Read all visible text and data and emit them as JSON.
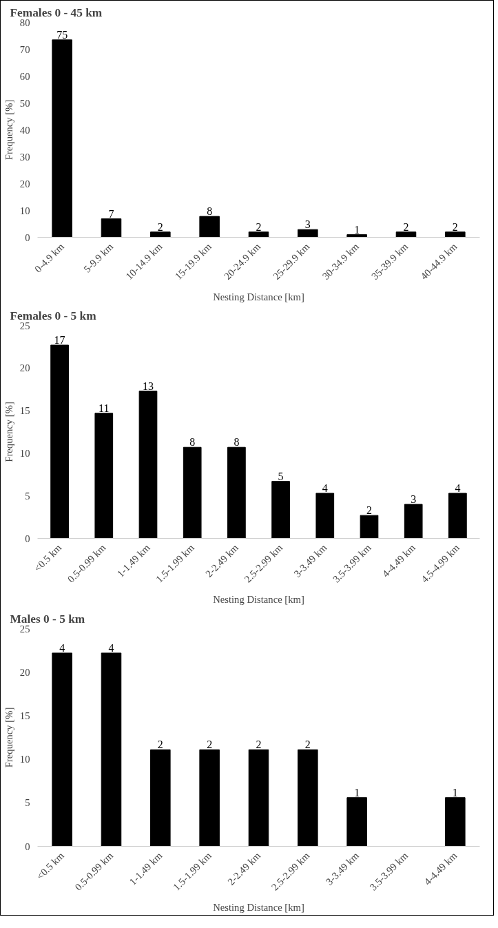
{
  "chart_data": [
    {
      "type": "bar",
      "title": "Females 0 - 45 km",
      "xlabel": "Nesting Distance [km]",
      "ylabel": "Frequency [%]",
      "color": "#000000",
      "categories": [
        "0-4.9 km",
        "5-9.9 km",
        "10-14.9 km",
        "15-19.9 km",
        "20-24.9 km",
        "25-29.9 km",
        "30-34.9 km",
        "35-39.9 km",
        "40-44.9 km"
      ],
      "values": [
        73.5,
        6.9,
        2.0,
        7.8,
        2.0,
        2.9,
        1.0,
        2.0,
        2.0
      ],
      "annotations": [
        {
          "text": "75",
          "x": "0-4.9 km",
          "y": 73.5
        },
        {
          "text": "7",
          "x": "5-9.9 km",
          "y": 6.9
        },
        {
          "text": "2",
          "x": "10-14.9 km",
          "y": 2.0
        },
        {
          "text": "8",
          "x": "15-19.9 km",
          "y": 7.8
        },
        {
          "text": "2",
          "x": "20-24.9 km",
          "y": 2.0
        },
        {
          "text": "3",
          "x": "25-29.9 km",
          "y": 2.9
        },
        {
          "text": "1",
          "x": "30-34.9 km",
          "y": 1.0
        },
        {
          "text": "2",
          "x": "35-39.9 km",
          "y": 2.0
        },
        {
          "text": "2",
          "x": "40-44.9 km",
          "y": 2.0
        }
      ],
      "ylim": [
        0,
        80
      ],
      "yticks": [
        0,
        10,
        20,
        30,
        40,
        50,
        60,
        70,
        80
      ]
    },
    {
      "type": "bar",
      "title": "Females 0 - 5 km",
      "xlabel": "Nesting Distance [km]",
      "ylabel": "Frequency [%]",
      "color": "#000000",
      "categories": [
        "<0.5 km",
        "0.5-0.99 km",
        "1-1.49 km",
        "1.5-1.99 km",
        "2-2.49 km",
        "2.5-2.99 km",
        "3-3.49 km",
        "3.5-3.99 km",
        "4-4.49 km",
        "4.5-4.99 km"
      ],
      "values": [
        22.7,
        14.7,
        17.3,
        10.7,
        10.7,
        6.7,
        5.3,
        2.7,
        4.0,
        5.3
      ],
      "annotations": [
        {
          "text": "17",
          "x": "<0.5 km",
          "y": 22.7
        },
        {
          "text": "11",
          "x": "0.5-0.99 km",
          "y": 14.7
        },
        {
          "text": "13",
          "x": "1-1.49 km",
          "y": 17.3
        },
        {
          "text": "8",
          "x": "1.5-1.99 km",
          "y": 10.7
        },
        {
          "text": "8",
          "x": "2-2.49 km",
          "y": 10.7
        },
        {
          "text": "5",
          "x": "2.5-2.99 km",
          "y": 6.7
        },
        {
          "text": "4",
          "x": "3-3.49 km",
          "y": 5.3
        },
        {
          "text": "2",
          "x": "3.5-3.99 km",
          "y": 2.7
        },
        {
          "text": "3",
          "x": "4-4.49 km",
          "y": 4.0
        },
        {
          "text": "4",
          "x": "4.5-4.99 km",
          "y": 5.3
        }
      ],
      "ylim": [
        0,
        25
      ],
      "yticks": [
        0,
        5,
        10,
        15,
        20,
        25
      ]
    },
    {
      "type": "bar",
      "title": "Males 0 - 5 km",
      "xlabel": "Nesting Distance [km]",
      "ylabel": "Frequency [%]",
      "color": "#000000",
      "categories": [
        "<0.5 km",
        "0.5-0.99 km",
        "1-1.49 km",
        "1.5-1.99 km",
        "2-2.49 km",
        "2.5-2.99 km",
        "3-3.49 km",
        "3.5-3.99 km",
        "4-4.49 km"
      ],
      "values": [
        22.2,
        22.2,
        11.1,
        11.1,
        11.1,
        11.1,
        5.6,
        null,
        5.6
      ],
      "annotations": [
        {
          "text": "4",
          "x": "<0.5 km",
          "y": 22.2
        },
        {
          "text": "4",
          "x": "0.5-0.99 km",
          "y": 22.2
        },
        {
          "text": "2",
          "x": "1-1.49 km",
          "y": 11.1
        },
        {
          "text": "2",
          "x": "1.5-1.99 km",
          "y": 11.1
        },
        {
          "text": "2",
          "x": "2-2.49 km",
          "y": 11.1
        },
        {
          "text": "2",
          "x": "2.5-2.99 km",
          "y": 11.1
        },
        {
          "text": "1",
          "x": "3-3.49 km",
          "y": 5.6
        },
        {
          "text": "1",
          "x": "4-4.49 km",
          "y": 5.6
        }
      ],
      "ylim": [
        0,
        25
      ],
      "yticks": [
        0,
        5,
        10,
        15,
        20,
        25
      ]
    }
  ]
}
